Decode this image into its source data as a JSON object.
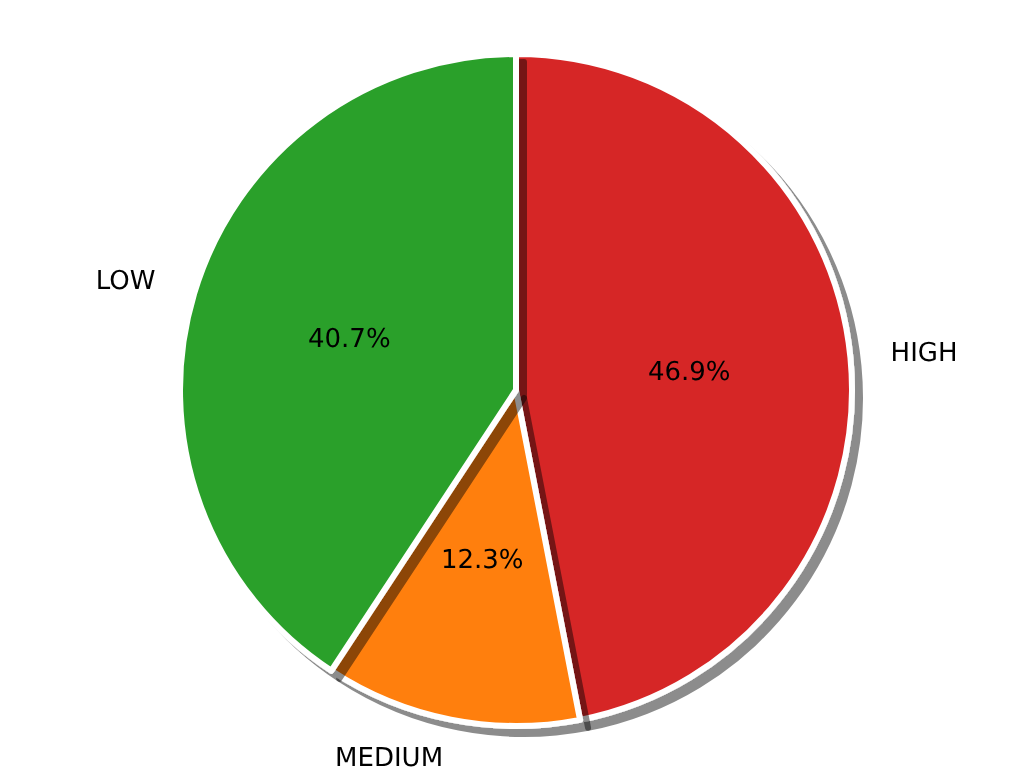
{
  "chart_data": {
    "type": "pie",
    "categories": [
      "HIGH",
      "MEDIUM",
      "LOW"
    ],
    "values": [
      46.9,
      12.3,
      40.7
    ],
    "colors": [
      "#d62728",
      "#ff7f0e",
      "#2ca02c"
    ],
    "value_labels": [
      "46.9%",
      "12.3%",
      "40.7%"
    ],
    "legend": false
  }
}
